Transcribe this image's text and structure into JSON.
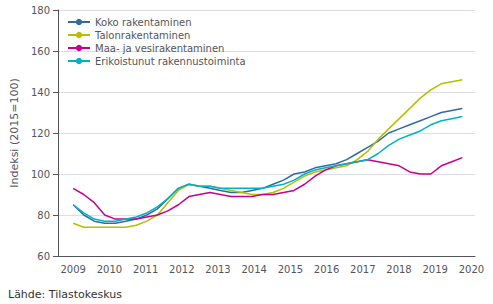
{
  "chart_data": {
    "type": "line",
    "ylabel": "Indeksi (2015=100)",
    "annotations": [
      "Lähde: Tilastokeskus"
    ],
    "x": [
      2009,
      2009.290541,
      2009.581081,
      2009.871622,
      2010.162162,
      2010.452703,
      2010.743243,
      2011.033784,
      2011.324324,
      2011.614865,
      2011.905405,
      2012.195946,
      2012.486486,
      2012.777027,
      2013.067568,
      2013.358108,
      2013.648649,
      2013.939189,
      2014.22973,
      2014.52027,
      2014.810811,
      2015.101351,
      2015.391892,
      2015.682432,
      2015.972973,
      2016.263514,
      2016.554054,
      2016.844595,
      2017.135135,
      2017.425676,
      2017.716216,
      2018.006757,
      2018.297297,
      2018.587838,
      2018.878378,
      2019.168919,
      2019.459459,
      2019.75
    ],
    "series": [
      {
        "name": "Koko rakentaminen",
        "color": "#2e6da4",
        "values": [
          85,
          80,
          77,
          76,
          76,
          77,
          78,
          80,
          83,
          88,
          93,
          95,
          94,
          93,
          92,
          91,
          91,
          92,
          93,
          95,
          97,
          100,
          101,
          103,
          104,
          105,
          107,
          110,
          113,
          116,
          120,
          122,
          124,
          126,
          128,
          130,
          131,
          132
        ]
      },
      {
        "name": "Talonrakentaminen",
        "color": "#b8be00",
        "values": [
          76,
          74,
          74,
          74,
          74,
          74,
          75,
          77,
          80,
          86,
          92,
          95,
          94,
          94,
          93,
          92,
          91,
          90,
          90,
          91,
          93,
          96,
          99,
          101,
          102,
          103,
          104,
          107,
          111,
          117,
          122,
          127,
          132,
          137,
          141,
          144,
          145,
          146
        ]
      },
      {
        "name": "Maa- ja vesirakentaminen",
        "color": "#c9008a",
        "values": [
          93,
          90,
          86,
          80,
          78,
          78,
          78,
          79,
          80,
          82,
          85,
          89,
          90,
          91,
          90,
          89,
          89,
          89,
          90,
          90,
          91,
          92,
          95,
          99,
          102,
          104,
          105,
          106,
          107,
          106,
          105,
          104,
          101,
          100,
          100,
          104,
          106,
          108
        ]
      },
      {
        "name": "Erikoistunut rakennustoiminta",
        "color": "#00b2c8",
        "values": [
          85,
          81,
          78,
          77,
          77,
          78,
          79,
          81,
          84,
          88,
          93,
          95,
          94,
          94,
          93,
          93,
          93,
          93,
          93,
          94,
          95,
          97,
          100,
          102,
          103,
          104,
          105,
          106,
          107,
          110,
          114,
          117,
          119,
          121,
          124,
          126,
          127,
          128
        ]
      }
    ],
    "xlim": [
      2008.58,
      2020.1
    ],
    "xticks": [
      2009,
      2010,
      2011,
      2012,
      2013,
      2014,
      2015,
      2016,
      2017,
      2018,
      2019,
      2020
    ],
    "ylim": [
      60,
      180
    ],
    "yticks": [
      60,
      80,
      100,
      120,
      140,
      160,
      180
    ],
    "grid": true,
    "legend": "upper left"
  }
}
